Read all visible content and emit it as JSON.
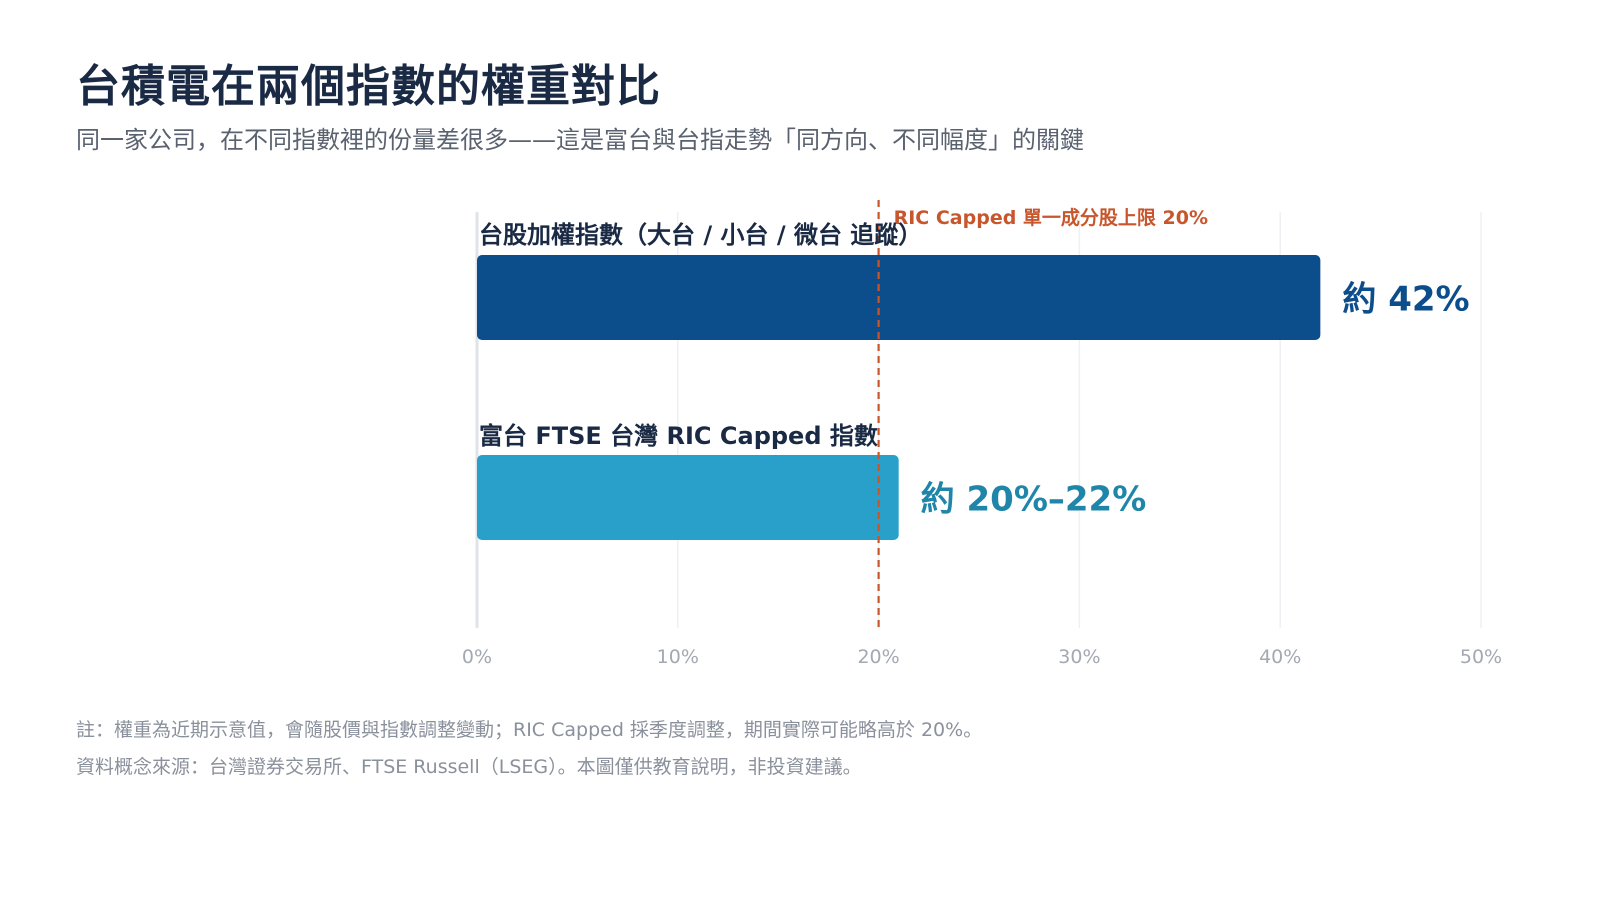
{
  "title": "台積電在兩個指數的權重對比",
  "subtitle": "同一家公司，在不同指數裡的份量差很多——這是富台與台指走勢「同方向、不同幅度」的關鍵",
  "chart_data": {
    "type": "bar",
    "orientation": "horizontal",
    "categories": [
      "台股加權指數（大台 / 小台 / 微台 追蹤）",
      "富台 FTSE 台灣 RIC Capped 指數"
    ],
    "values": [
      42,
      21
    ],
    "data_labels": [
      "約 42%",
      "約 20%–22%"
    ],
    "bar_colors": [
      "#0c4d8c",
      "#29a0c9"
    ],
    "label_colors": [
      "#0c4d8c",
      "#1f86aa"
    ],
    "xlim": [
      0,
      50
    ],
    "xticks": [
      0,
      10,
      20,
      30,
      40,
      50
    ],
    "xtick_labels": [
      "0%",
      "10%",
      "20%",
      "30%",
      "40%",
      "50%"
    ],
    "grid": true,
    "reference_line": {
      "value": 20,
      "label": "RIC Capped 單一成分股上限 20%",
      "color": "#c8562d",
      "style": "dashed"
    }
  },
  "notes": [
    "註：權重為近期示意值，會隨股價與指數調整變動；RIC Capped 採季度調整，期間實際可能略高於 20%。",
    "資料概念來源：台灣證券交易所、FTSE Russell（LSEG）。本圖僅供教育說明，非投資建議。"
  ]
}
